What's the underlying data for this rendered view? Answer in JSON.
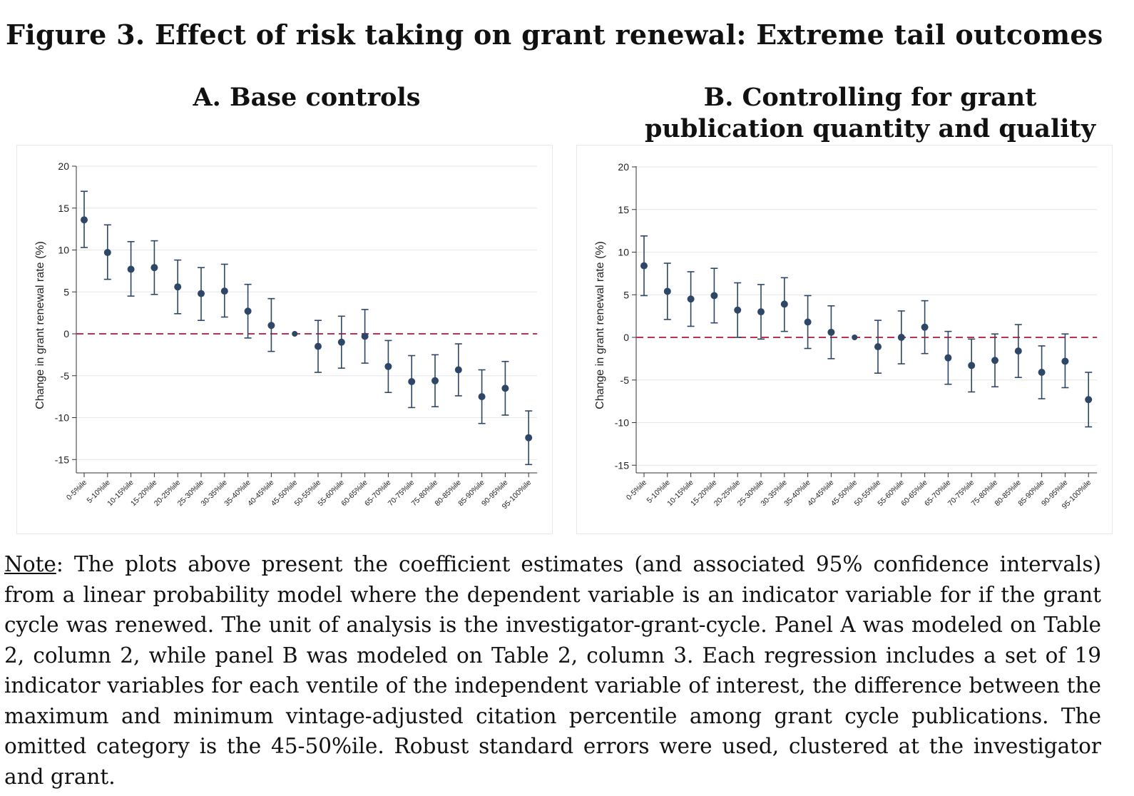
{
  "figure_title": "Figure 3. Effect of risk taking on grant renewal: Extreme tail outcomes",
  "note": {
    "label": "Note",
    "text": ": The plots above present the coefficient estimates (and associated 95% confidence intervals) from a linear probability model where the dependent variable is an indicator variable for if the grant cycle was renewed. The unit of analysis is the investigator-grant-cycle. Panel A was modeled on Table 2, column 2, while panel B was modeled on Table 2, column 3. Each regression includes a set of 19 indicator variables for each ventile of the independent variable of interest, the difference between the maximum and minimum vintage-adjusted citation percentile among grant cycle publications. The omitted category is the 45-50%ile. Robust standard errors were used, clustered at the investigator and grant."
  },
  "colors": {
    "point": "#2e4766",
    "refline": "#c0314f",
    "grid": "#e6e6e6",
    "frame": "#e8e8e8"
  },
  "chart_data": [
    {
      "type": "scatter",
      "title": "A. Base controls",
      "xlabel": "",
      "ylabel": "Change in grant renewal rate (%)",
      "ylim": [
        -17,
        20
      ],
      "yticks": [
        20,
        15,
        10,
        5,
        0,
        -5,
        -10,
        -15
      ],
      "reference_line": 0,
      "categories": [
        "0-5%ile",
        "5-10%ile",
        "10-15%ile",
        "15-20%ile",
        "20-25%ile",
        "25-30%ile",
        "30-35%ile",
        "35-40%ile",
        "40-45%ile",
        "45-50%ile",
        "50-55%ile",
        "55-60%ile",
        "60-65%ile",
        "65-70%ile",
        "70-75%ile",
        "75-80%ile",
        "80-85%ile",
        "85-90%ile",
        "90-95%ile",
        "95-100%ile"
      ],
      "values": [
        13.6,
        9.7,
        7.7,
        7.9,
        5.6,
        4.8,
        5.1,
        2.7,
        1.0,
        0,
        -1.5,
        -1.0,
        -0.3,
        -3.9,
        -5.7,
        -5.6,
        -4.3,
        -7.5,
        -6.5,
        -12.4
      ],
      "lower": [
        10.3,
        6.5,
        4.5,
        4.7,
        2.4,
        1.6,
        2.0,
        -0.5,
        -2.1,
        0,
        -4.6,
        -4.1,
        -3.5,
        -7.0,
        -8.8,
        -8.7,
        -7.4,
        -10.7,
        -9.7,
        -15.6
      ],
      "upper": [
        17.0,
        13.0,
        11.0,
        11.1,
        8.8,
        7.9,
        8.3,
        5.9,
        4.2,
        0,
        1.6,
        2.1,
        2.9,
        -0.8,
        -2.6,
        -2.5,
        -1.2,
        -4.3,
        -3.3,
        -9.2
      ]
    },
    {
      "type": "scatter",
      "title": "B. Controlling for grant publication quantity and quality",
      "xlabel": "",
      "ylabel": "Change in grant renewal rate (%)",
      "ylim": [
        -16,
        20
      ],
      "yticks": [
        20,
        15,
        10,
        5,
        0,
        -5,
        -10,
        -15
      ],
      "reference_line": 0,
      "categories": [
        "0-5%ile",
        "5-10%ile",
        "10-15%ile",
        "15-20%ile",
        "20-25%ile",
        "25-30%ile",
        "30-35%ile",
        "35-40%ile",
        "40-45%ile",
        "45-50%ile",
        "50-55%ile",
        "55-60%ile",
        "60-65%ile",
        "65-70%ile",
        "70-75%ile",
        "75-80%ile",
        "80-85%ile",
        "85-90%ile",
        "90-95%ile",
        "95-100%ile"
      ],
      "values": [
        8.4,
        5.4,
        4.5,
        4.9,
        3.2,
        3.0,
        3.9,
        1.8,
        0.6,
        0,
        -1.1,
        0.0,
        1.2,
        -2.4,
        -3.3,
        -2.7,
        -1.6,
        -4.1,
        -2.8,
        -7.3
      ],
      "lower": [
        4.9,
        2.1,
        1.3,
        1.7,
        0.0,
        -0.2,
        0.7,
        -1.3,
        -2.5,
        0,
        -4.2,
        -3.1,
        -1.9,
        -5.5,
        -6.4,
        -5.8,
        -4.7,
        -7.2,
        -5.9,
        -10.5
      ],
      "upper": [
        11.9,
        8.7,
        7.7,
        8.1,
        6.4,
        6.2,
        7.0,
        4.9,
        3.7,
        0,
        2.0,
        3.1,
        4.3,
        0.7,
        -0.2,
        0.4,
        1.5,
        -1.0,
        0.4,
        -4.1
      ]
    }
  ]
}
